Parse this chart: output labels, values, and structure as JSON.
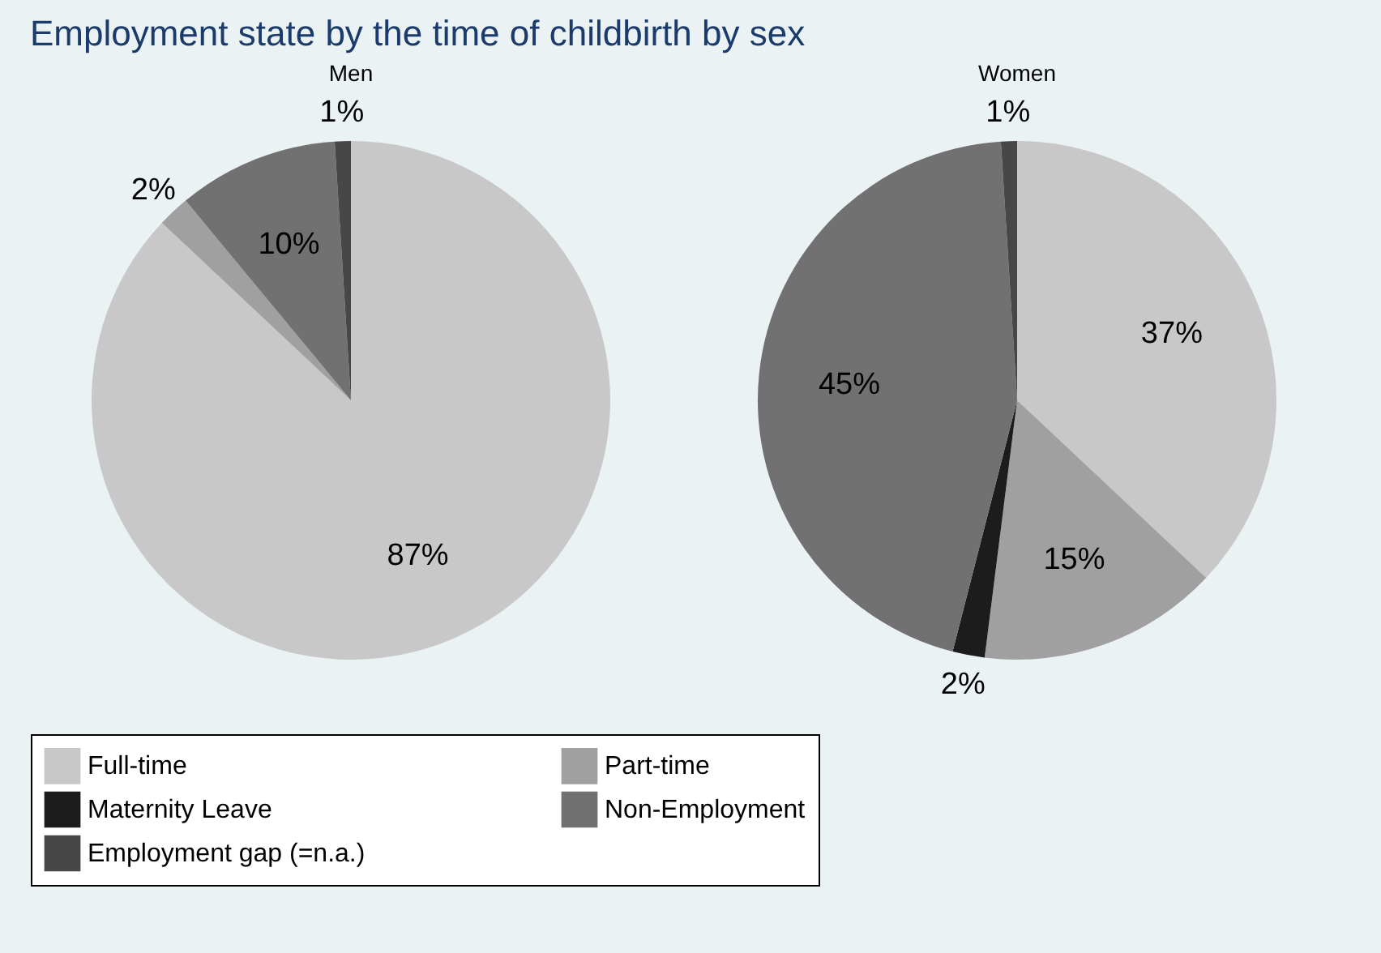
{
  "chart_data": {
    "type": "pie",
    "title": "Employment state by the time of childbirth by sex",
    "categories": [
      "Full-time",
      "Part-time",
      "Maternity Leave",
      "Non-Employment",
      "Employment gap (=n.a.)"
    ],
    "colors": [
      "#c8c8c8",
      "#a0a0a0",
      "#1c1c1c",
      "#717171",
      "#474747"
    ],
    "series": [
      {
        "name": "Men",
        "values": [
          87,
          2,
          0,
          10,
          1
        ],
        "value_labels": [
          "87%",
          "2%",
          null,
          "10%",
          "1%"
        ]
      },
      {
        "name": "Women",
        "values": [
          37,
          15,
          2,
          45,
          1
        ],
        "value_labels": [
          "37%",
          "15%",
          "2%",
          "45%",
          "1%"
        ]
      }
    ],
    "legend": "bottom"
  }
}
